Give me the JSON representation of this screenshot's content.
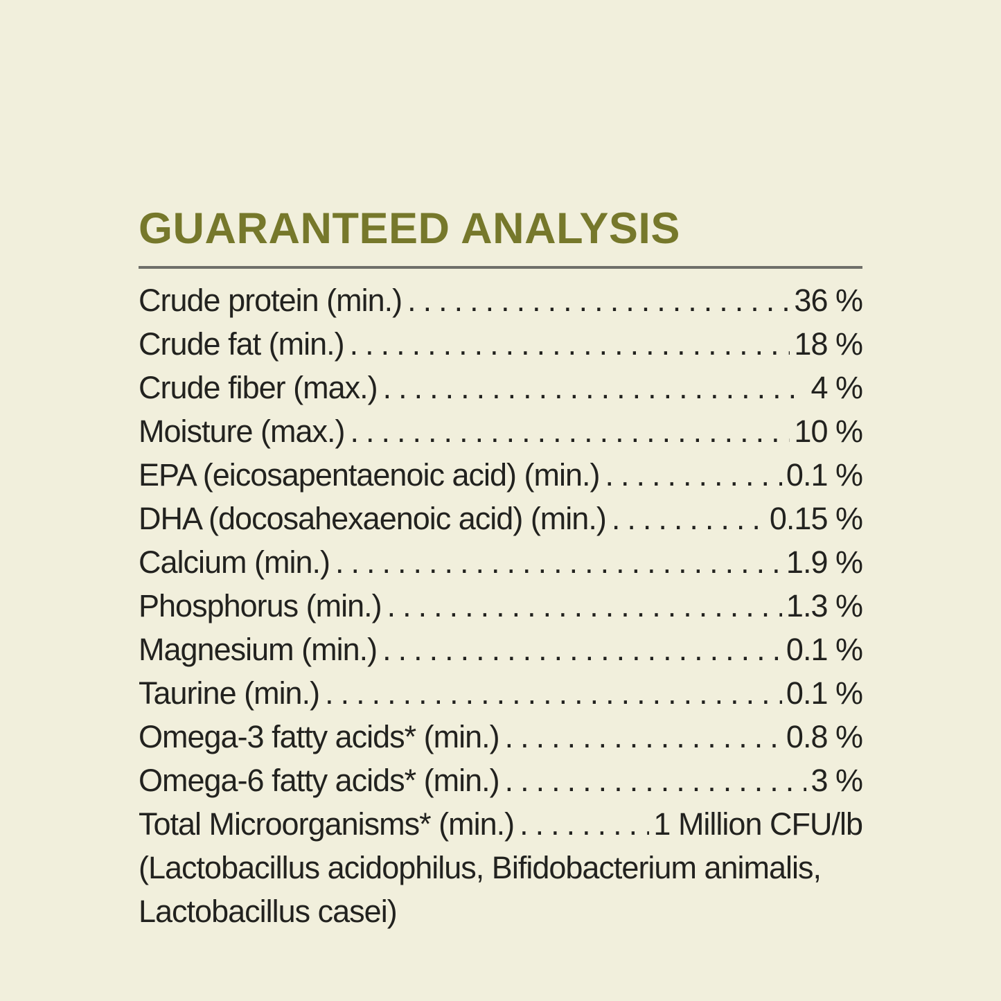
{
  "page": {
    "background_color": "#f1efdc",
    "text_color": "#22221f"
  },
  "header": {
    "title": "GUARANTEED ANALYSIS",
    "title_color": "#76782b",
    "rule_color": "#6f6f69"
  },
  "guaranteed_analysis": {
    "rows": [
      {
        "label": "Crude protein (min.)",
        "value": "36 %"
      },
      {
        "label": "Crude fat (min.)",
        "value": "18 %"
      },
      {
        "label": "Crude fiber (max.)",
        "value": "4 %"
      },
      {
        "label": "Moisture (max.)",
        "value": "10 %"
      },
      {
        "label": "EPA (eicosapentaenoic acid) (min.)",
        "value": "0.1 %"
      },
      {
        "label": "DHA (docosahexaenoic acid) (min.)",
        "value": "0.15 %"
      },
      {
        "label": "Calcium (min.)",
        "value": "1.9 %"
      },
      {
        "label": "Phosphorus (min.)",
        "value": "1.3 %"
      },
      {
        "label": "Magnesium (min.)",
        "value": "0.1 %"
      },
      {
        "label": "Taurine (min.)",
        "value": "0.1 %"
      },
      {
        "label": "Omega-3 fatty acids* (min.)",
        "value": "0.8 %"
      },
      {
        "label": "Omega-6 fatty acids* (min.)",
        "value": "3 %"
      },
      {
        "label": "Total Microorganisms* (min.)",
        "value": "1 Million CFU/lb"
      }
    ],
    "species_note_lines": [
      "(Lactobacillus acidophilus, Bifidobacterium animalis,",
      "Lactobacillus casei)"
    ]
  }
}
